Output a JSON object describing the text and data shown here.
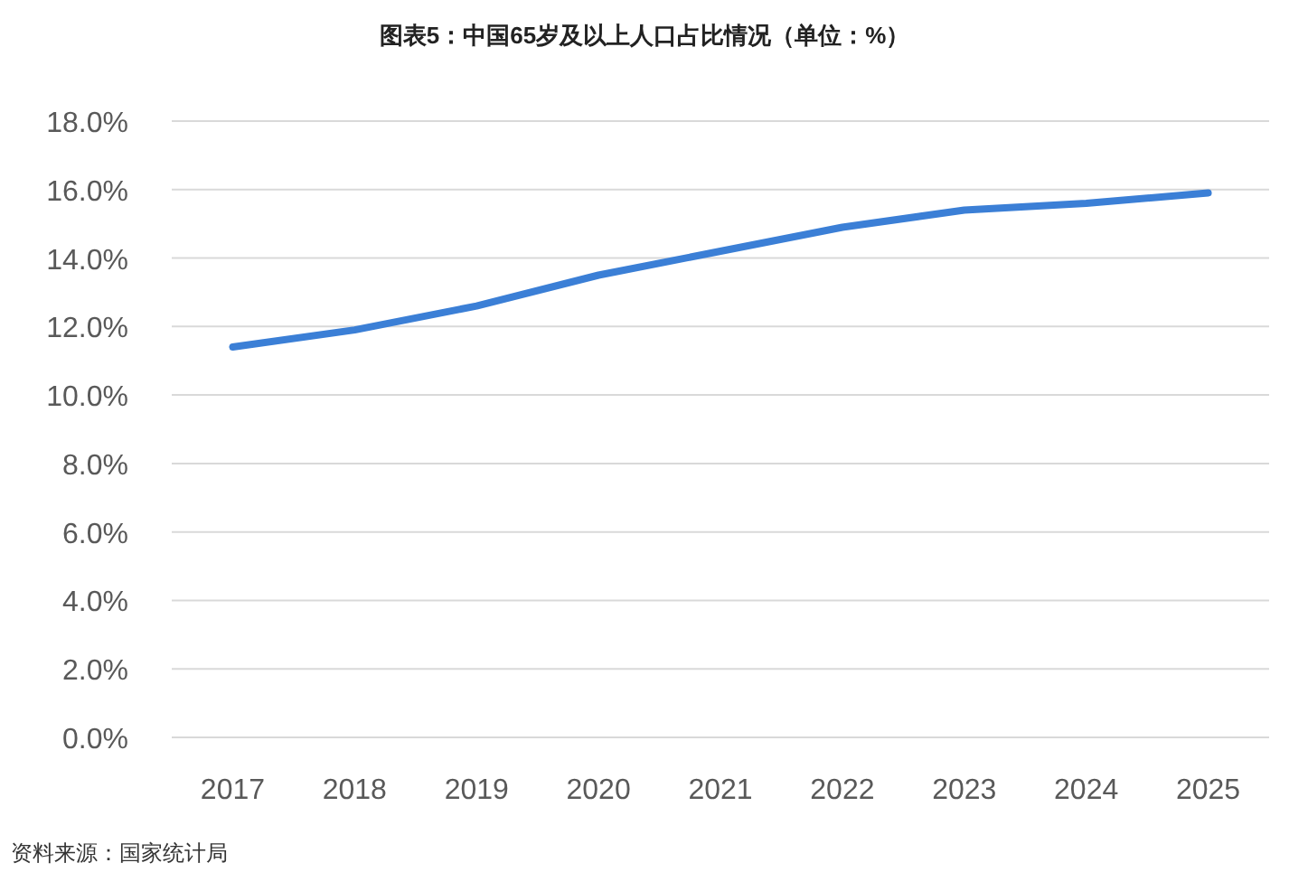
{
  "chart_data": {
    "type": "line",
    "title": "图表5：中国65岁及以上人口占比情况（单位：%）",
    "categories": [
      "2017",
      "2018",
      "2019",
      "2020",
      "2021",
      "2022",
      "2023",
      "2024",
      "2025"
    ],
    "series": [
      {
        "color": "#3b7fd6",
        "values": [
          11.4,
          11.9,
          12.6,
          13.5,
          14.2,
          14.9,
          15.4,
          15.6,
          15.9
        ]
      }
    ],
    "ylim": [
      0,
      18
    ],
    "yticks": [
      {
        "value": 0,
        "label": "0.0%"
      },
      {
        "value": 2,
        "label": "2.0%"
      },
      {
        "value": 4,
        "label": "4.0%"
      },
      {
        "value": 6,
        "label": "6.0%"
      },
      {
        "value": 8,
        "label": "8.0%"
      },
      {
        "value": 10,
        "label": "10.0%"
      },
      {
        "value": 12,
        "label": "12.0%"
      },
      {
        "value": 14,
        "label": "14.0%"
      },
      {
        "value": 16,
        "label": "16.0%"
      },
      {
        "value": 18,
        "label": "18.0%"
      }
    ],
    "grid": "y",
    "marker": "none",
    "line_style": "solid",
    "annotations": [
      "资料来源：国家统计局"
    ]
  }
}
